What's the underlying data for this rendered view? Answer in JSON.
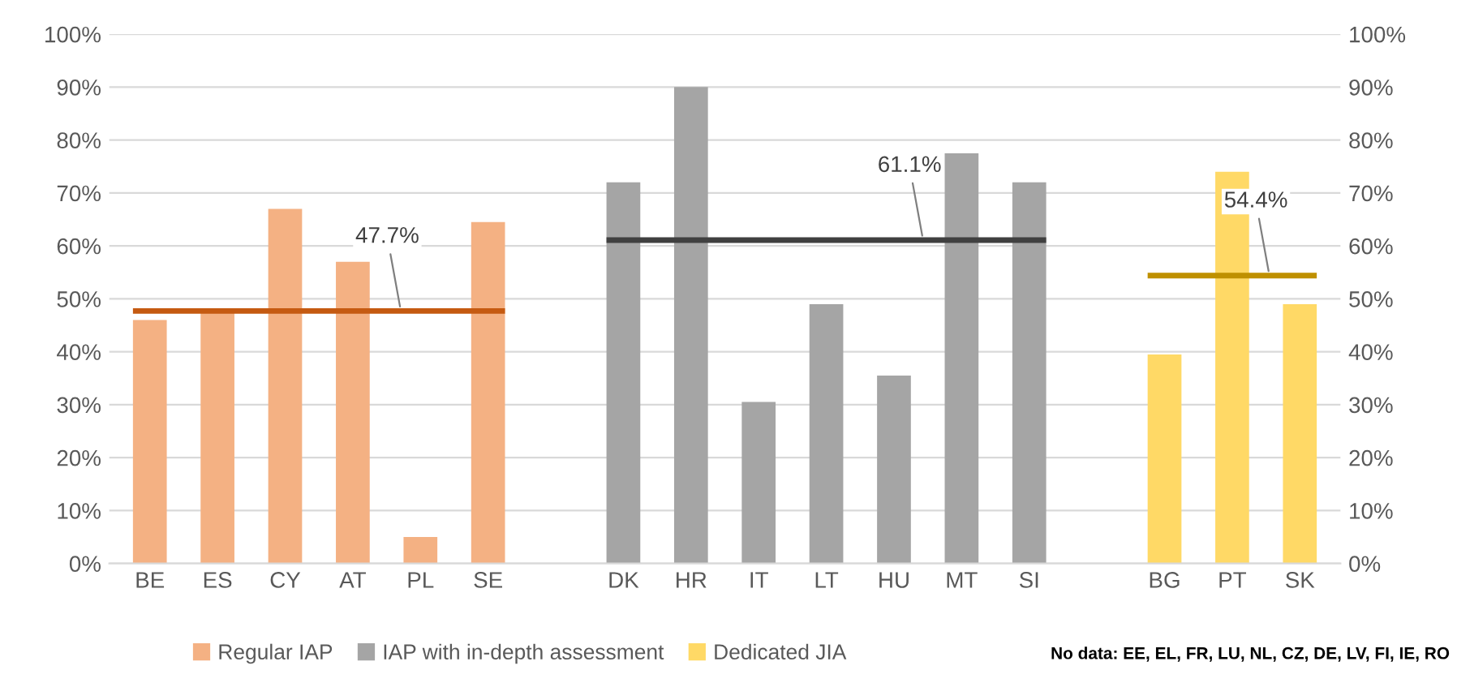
{
  "chart_data": {
    "type": "bar",
    "categories": [
      "BE",
      "ES",
      "CY",
      "AT",
      "PL",
      "SE",
      null,
      "DK",
      "HR",
      "IT",
      "LT",
      "HU",
      "MT",
      "SI",
      null,
      "BG",
      "PT",
      "SK"
    ],
    "series": [
      {
        "name": "Regular IAP",
        "color": "#f4b183",
        "values": [
          46,
          47.5,
          67,
          57,
          5,
          64.5,
          null,
          null,
          null,
          null,
          null,
          null,
          null,
          null,
          null,
          null,
          null,
          null
        ]
      },
      {
        "name": "IAP with in-depth assessment",
        "color": "#a5a5a5",
        "values": [
          null,
          null,
          null,
          null,
          null,
          null,
          null,
          72,
          90,
          30.5,
          49,
          35.5,
          77.5,
          72,
          null,
          null,
          null,
          null
        ]
      },
      {
        "name": "Dedicated JIA",
        "color": "#ffd966",
        "values": [
          null,
          null,
          null,
          null,
          null,
          null,
          null,
          null,
          null,
          null,
          null,
          null,
          null,
          null,
          null,
          39.5,
          74,
          49
        ]
      }
    ],
    "ref_lines": [
      {
        "axis": "y",
        "value": 47.7,
        "label": "47.7%",
        "color": "#c55a11"
      },
      {
        "axis": "y",
        "value": 61.1,
        "label": "61.1%",
        "color": "#404040"
      },
      {
        "axis": "y",
        "value": 54.4,
        "label": "54.4%",
        "color": "#bf9000"
      }
    ],
    "ylim": [
      0,
      100
    ],
    "yticks": [
      {
        "value": 0,
        "label": "0%"
      },
      {
        "value": 10,
        "label": "10%"
      },
      {
        "value": 20,
        "label": "20%"
      },
      {
        "value": 30,
        "label": "30%"
      },
      {
        "value": 40,
        "label": "40%"
      },
      {
        "value": 50,
        "label": "50%"
      },
      {
        "value": 60,
        "label": "60%"
      },
      {
        "value": 70,
        "label": "70%"
      },
      {
        "value": 80,
        "label": "80%"
      },
      {
        "value": 90,
        "label": "90%"
      },
      {
        "value": 100,
        "label": "100%"
      }
    ],
    "y2lim": [
      0,
      100
    ],
    "y2ticks": [
      {
        "value": 0,
        "label": "0%"
      },
      {
        "value": 10,
        "label": "10%"
      },
      {
        "value": 20,
        "label": "20%"
      },
      {
        "value": 30,
        "label": "30%"
      },
      {
        "value": 40,
        "label": "40%"
      },
      {
        "value": 50,
        "label": "50%"
      },
      {
        "value": 60,
        "label": "60%"
      },
      {
        "value": 70,
        "label": "70%"
      },
      {
        "value": 80,
        "label": "80%"
      },
      {
        "value": 90,
        "label": "90%"
      },
      {
        "value": 100,
        "label": "100%"
      }
    ],
    "grid": "y",
    "legend": "bottom",
    "annotations": [
      "No data: EE, EL, FR, LU, NL, CZ, DE, LV, FI, IE, RO"
    ]
  }
}
